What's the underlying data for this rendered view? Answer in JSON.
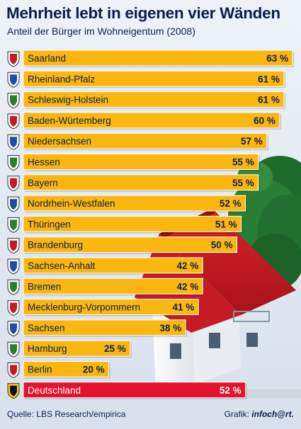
{
  "title": "Mehrheit lebt in eigenen vier Wänden",
  "subtitle": "Anteil der Bürger im Wohneigentum (2008)",
  "source": "Quelle: LBS Research/empirica",
  "credit": {
    "prefix": "Grafik:",
    "logo": "infoch@rt."
  },
  "colors": {
    "bar": "#fbb70f",
    "highlight": "#e3122d",
    "text": "#0b1f4f"
  },
  "chart_data": {
    "type": "bar",
    "orientation": "horizontal",
    "unit": "%",
    "xlim": [
      0,
      63
    ],
    "grid": false,
    "legend": "none",
    "categories": [
      "Saarland",
      "Rheinland-Pfalz",
      "Schleswig-Holstein",
      "Baden-Würtemberg",
      "Niedersachsen",
      "Hessen",
      "Bayern",
      "Nordrhein-Westfalen",
      "Thüringen",
      "Brandenburg",
      "Sachsen-Anhalt",
      "Bremen",
      "Mecklenburg-Vorpommern",
      "Sachsen",
      "Hamburg",
      "Berlin",
      "Deutschland"
    ],
    "values": [
      63,
      61,
      61,
      60,
      57,
      55,
      55,
      52,
      51,
      50,
      42,
      42,
      41,
      38,
      25,
      20,
      52
    ],
    "value_labels": [
      "63 %",
      "61 %",
      "61 %",
      "60 %",
      "57 %",
      "55 %",
      "55 %",
      "52 %",
      "51 %",
      "50 %",
      "42 %",
      "42 %",
      "41 %",
      "38 %",
      "25 %",
      "20 %",
      "52 %"
    ],
    "highlight": "Deutschland",
    "icons": [
      "coat-of-arms-saarland",
      "coat-of-arms-rheinland-pfalz",
      "coat-of-arms-schleswig-holstein",
      "coat-of-arms-baden-wuerttemberg",
      "coat-of-arms-niedersachsen",
      "coat-of-arms-hessen",
      "coat-of-arms-bayern",
      "coat-of-arms-nordrhein-westfalen",
      "coat-of-arms-thueringen",
      "coat-of-arms-brandenburg",
      "coat-of-arms-sachsen-anhalt",
      "coat-of-arms-bremen",
      "coat-of-arms-mecklenburg-vorpommern",
      "coat-of-arms-sachsen",
      "coat-of-arms-hamburg",
      "coat-of-arms-berlin",
      "coat-of-arms-deutschland"
    ]
  }
}
